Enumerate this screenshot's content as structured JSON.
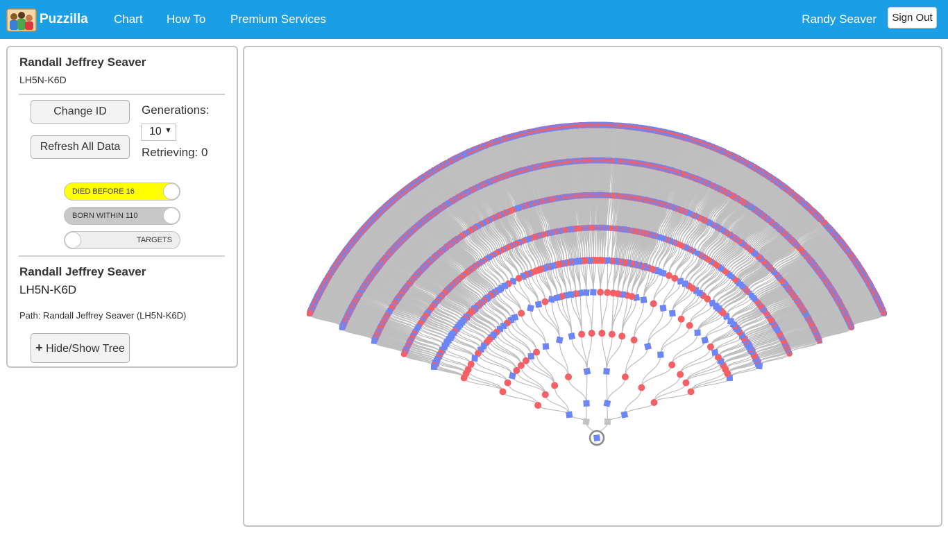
{
  "app": {
    "name": "Puzzilla"
  },
  "nav": {
    "links": [
      "Chart",
      "How To",
      "Premium Services"
    ],
    "user": "Randy Seaver",
    "signout": "Sign Out"
  },
  "person": {
    "name": "Randall Jeffrey Seaver",
    "id": "LH5N-K6D",
    "path": "Path: Randall Jeffrey Seaver (LH5N-K6D)"
  },
  "controls": {
    "change_id": "Change ID",
    "refresh": "Refresh All Data",
    "generations_label": "Generations:",
    "generations_value": "10",
    "retrieving": "Retrieving: 0",
    "hide_show_icon": "+",
    "hide_show": "Hide/Show Tree"
  },
  "toggles": [
    {
      "label": "DIED BEFORE 16",
      "on": true,
      "color": "#ffff00"
    },
    {
      "label": "BORN WITHIN 110",
      "on": true,
      "color": "#c8c8c8"
    },
    {
      "label": "TARGETS",
      "on": false,
      "color": "#eeeeee"
    }
  ],
  "chart_colors": {
    "male": "#6e86f5",
    "female": "#f36066",
    "unknown": "#c3c3c3",
    "link": "#bfbfbf"
  },
  "chart_data": {
    "type": "fan-tree",
    "generations": 10,
    "root_id": "LH5N-K6D"
  }
}
